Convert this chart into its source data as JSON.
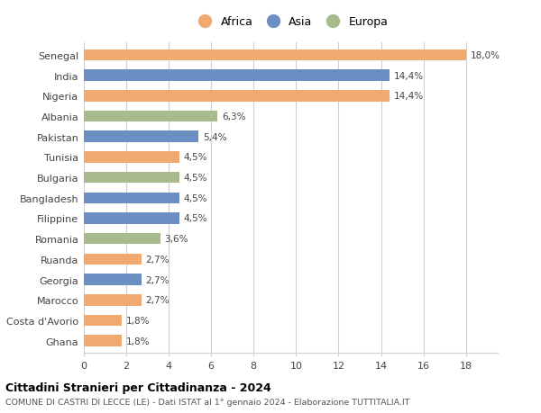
{
  "categories": [
    "Ghana",
    "Costa d'Avorio",
    "Marocco",
    "Georgia",
    "Ruanda",
    "Romania",
    "Filippine",
    "Bangladesh",
    "Bulgaria",
    "Tunisia",
    "Pakistan",
    "Albania",
    "Nigeria",
    "India",
    "Senegal"
  ],
  "values": [
    1.8,
    1.8,
    2.7,
    2.7,
    2.7,
    3.6,
    4.5,
    4.5,
    4.5,
    4.5,
    5.4,
    6.3,
    14.4,
    14.4,
    18.0
  ],
  "labels": [
    "1,8%",
    "1,8%",
    "2,7%",
    "2,7%",
    "2,7%",
    "3,6%",
    "4,5%",
    "4,5%",
    "4,5%",
    "4,5%",
    "5,4%",
    "6,3%",
    "14,4%",
    "14,4%",
    "18,0%"
  ],
  "colors": [
    "#f0a96e",
    "#f0a96e",
    "#f0a96e",
    "#6b8fc2",
    "#f0a96e",
    "#a8bb8c",
    "#6b8fc2",
    "#6b8fc2",
    "#a8bb8c",
    "#f0a96e",
    "#6b8fc2",
    "#a8bb8c",
    "#f0a96e",
    "#6b8fc2",
    "#f0a96e"
  ],
  "continent": [
    "Africa",
    "Africa",
    "Africa",
    "Asia",
    "Africa",
    "Europa",
    "Asia",
    "Asia",
    "Europa",
    "Africa",
    "Asia",
    "Europa",
    "Africa",
    "Asia",
    "Africa"
  ],
  "africa_color": "#f0a96e",
  "asia_color": "#6b8fc2",
  "europa_color": "#a8bb8c",
  "xlim": [
    0,
    19.5
  ],
  "xticks": [
    0,
    2,
    4,
    6,
    8,
    10,
    12,
    14,
    16,
    18
  ],
  "title": "Cittadini Stranieri per Cittadinanza - 2024",
  "subtitle": "COMUNE DI CASTRI DI LECCE (LE) - Dati ISTAT al 1° gennaio 2024 - Elaborazione TUTTITALIA.IT",
  "background_color": "#ffffff",
  "grid_color": "#d0d0d0",
  "bar_height": 0.55
}
